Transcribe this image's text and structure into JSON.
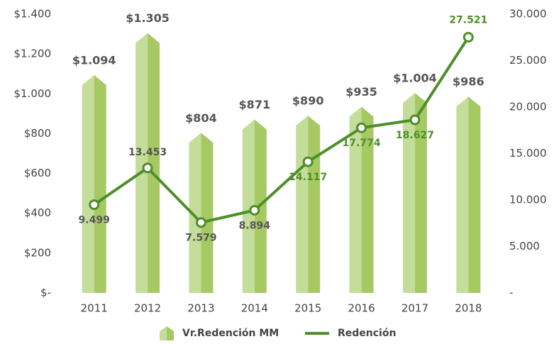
{
  "chart_data": {
    "type": "combo",
    "categories": [
      "2011",
      "2012",
      "2013",
      "2014",
      "2015",
      "2016",
      "2017",
      "2018"
    ],
    "series": [
      {
        "name": "Vr.Redención MM",
        "type": "bar",
        "color": "#a6c964",
        "values": [
          1094,
          1305,
          804,
          871,
          890,
          935,
          1004,
          986
        ],
        "value_labels": [
          "$1.094",
          "$1.305",
          "$804",
          "$871",
          "$890",
          "$935",
          "$1.004",
          "$986"
        ]
      },
      {
        "name": "Redención",
        "type": "line",
        "axis": "y2",
        "color": "#4e8f2a",
        "values": [
          9499,
          13453,
          7579,
          8894,
          14117,
          17774,
          18627,
          27521
        ],
        "value_labels": [
          "9.499",
          "13.453",
          "7.579",
          "8.894",
          "14.117",
          "17.774",
          "18.627",
          "27.521"
        ]
      }
    ],
    "ylim": [
      0,
      1400
    ],
    "yticks": [
      {
        "value": 0,
        "label": "$-"
      },
      {
        "value": 200,
        "label": "$200"
      },
      {
        "value": 400,
        "label": "$400"
      },
      {
        "value": 600,
        "label": "$600"
      },
      {
        "value": 800,
        "label": "$800"
      },
      {
        "value": 1000,
        "label": "$1.000"
      },
      {
        "value": 1200,
        "label": "$1.200"
      },
      {
        "value": 1400,
        "label": "$1.400"
      }
    ],
    "y2lim": [
      0,
      30000
    ],
    "y2ticks": [
      {
        "value": 0,
        "label": "-"
      },
      {
        "value": 5000,
        "label": "5.000"
      },
      {
        "value": 10000,
        "label": "10.000"
      },
      {
        "value": 15000,
        "label": "15.000"
      },
      {
        "value": 20000,
        "label": "20.000"
      },
      {
        "value": 25000,
        "label": "25.000"
      },
      {
        "value": 30000,
        "label": "30.000"
      }
    ],
    "legend": "bottom"
  }
}
